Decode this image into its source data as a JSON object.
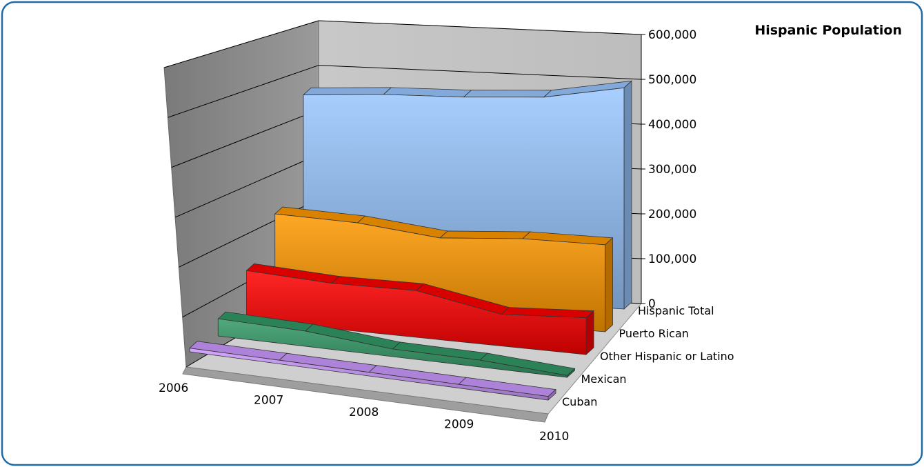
{
  "chart_data": {
    "type": "area",
    "variant": "3d",
    "title": "Hispanic Population",
    "xlabel": "",
    "ylabel": "",
    "ylim": [
      0,
      600000
    ],
    "grid": true,
    "legend": "none",
    "categories": [
      "2006",
      "2007",
      "2008",
      "2009",
      "2010"
    ],
    "y_ticks": [
      "0",
      "100,000",
      "200,000",
      "300,000",
      "400,000",
      "500,000",
      "600,000"
    ],
    "series": [
      {
        "name": "Hispanic Total",
        "color": "#99c7ff",
        "values": [
          455000,
          468000,
          474000,
          486000,
          520000
        ]
      },
      {
        "name": "Puerto Rican",
        "color": "#ff9900",
        "values": [
          220000,
          215000,
          195000,
          210000,
          212000
        ]
      },
      {
        "name": "Other Hispanic or Latino",
        "color": "#ff0000",
        "values": [
          125000,
          115000,
          118000,
          80000,
          93000
        ]
      },
      {
        "name": "Mexican",
        "color": "#339966",
        "values": [
          45000,
          40000,
          20000,
          18000,
          5000
        ]
      },
      {
        "name": "Cuban",
        "color": "#cc99ff",
        "values": [
          10000,
          10000,
          10000,
          10000,
          10000
        ]
      }
    ]
  }
}
